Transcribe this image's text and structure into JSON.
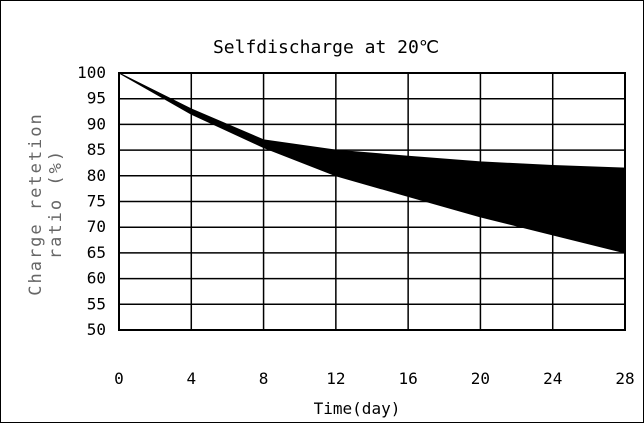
{
  "chart_data": {
    "type": "area",
    "title": "Selfdischarge at 20℃",
    "xlabel": "Time(day)",
    "ylabel_lines": [
      "Charge retetion",
      "ratio (%)"
    ],
    "xlim": [
      0,
      28
    ],
    "ylim": [
      50,
      100
    ],
    "x_ticks": [
      "0",
      "4",
      "8",
      "12",
      "16",
      "20",
      "24",
      "28"
    ],
    "y_ticks": [
      "100",
      "95",
      "90",
      "85",
      "80",
      "75",
      "70",
      "65",
      "60",
      "55",
      "50"
    ],
    "grid": true,
    "series": [
      {
        "values_upper": [
          [
            0,
            100
          ],
          [
            4,
            93
          ],
          [
            8,
            87
          ],
          [
            12,
            85
          ],
          [
            16,
            83.8
          ],
          [
            20,
            82.7
          ],
          [
            24,
            82
          ],
          [
            28,
            81.5
          ]
        ]
      },
      {
        "values_lower": [
          [
            0,
            100
          ],
          [
            4,
            92
          ],
          [
            8,
            85.5
          ],
          [
            12,
            80
          ],
          [
            16,
            76
          ],
          [
            20,
            72
          ],
          [
            24,
            68.5
          ],
          [
            28,
            65
          ]
        ]
      }
    ],
    "fill_color": "#000000"
  }
}
